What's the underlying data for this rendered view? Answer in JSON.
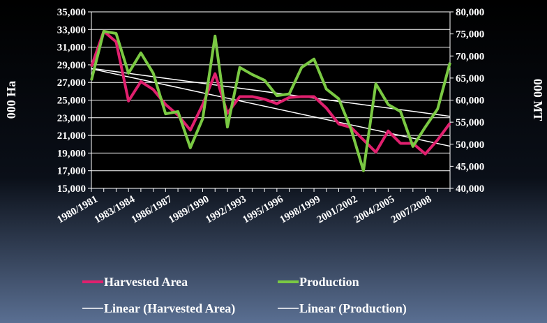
{
  "chart_data": {
    "type": "line",
    "categories": [
      "1980/1981",
      null,
      null,
      "1983/1984",
      null,
      null,
      "1986/1987",
      null,
      null,
      "1989/1990",
      null,
      null,
      "1992/1993",
      null,
      null,
      "1995/1996",
      null,
      null,
      "1998/1999",
      null,
      null,
      "2001/2002",
      null,
      null,
      "2004/2005",
      null,
      null,
      "2007/2008",
      null,
      null
    ],
    "y_label": "000 Ha",
    "y2_label": "000 MT",
    "ylim": [
      15000,
      35000
    ],
    "yticks": [
      {
        "value": 15000,
        "label": "15,000"
      },
      {
        "value": 17000,
        "label": "17,000"
      },
      {
        "value": 19000,
        "label": "19,000"
      },
      {
        "value": 21000,
        "label": "21,000"
      },
      {
        "value": 23000,
        "label": "23,000"
      },
      {
        "value": 25000,
        "label": "25,000"
      },
      {
        "value": 27000,
        "label": "27,000"
      },
      {
        "value": 29000,
        "label": "29,000"
      },
      {
        "value": 31000,
        "label": "31,000"
      },
      {
        "value": 33000,
        "label": "33,000"
      },
      {
        "value": 35000,
        "label": "35,000"
      }
    ],
    "y2lim": [
      40000,
      80000
    ],
    "y2ticks": [
      {
        "value": 40000,
        "label": "40,000"
      },
      {
        "value": 45000,
        "label": "45,000"
      },
      {
        "value": 50000,
        "label": "50,000"
      },
      {
        "value": 55000,
        "label": "55,000"
      },
      {
        "value": 60000,
        "label": "60,000"
      },
      {
        "value": 65000,
        "label": "65,000"
      },
      {
        "value": 70000,
        "label": "70,000"
      },
      {
        "value": 75000,
        "label": "75,000"
      },
      {
        "value": 80000,
        "label": "80,000"
      }
    ],
    "grid": true,
    "series": [
      {
        "name": "Harvested Area",
        "color": "#e0206e",
        "values": [
          28800,
          32800,
          31600,
          24900,
          27100,
          26200,
          24500,
          23300,
          21600,
          24500,
          28000,
          23500,
          25400,
          25400,
          25100,
          24600,
          25300,
          25400,
          25400,
          24100,
          22300,
          21900,
          20500,
          19100,
          21500,
          20100,
          20100,
          18900,
          20500,
          22400
        ]
      },
      {
        "name": "Production",
        "color": "#7ac943",
        "axis": "y2",
        "values": [
          64500,
          75600,
          75100,
          66100,
          70700,
          66100,
          56900,
          57400,
          49200,
          55800,
          74500,
          53900,
          67400,
          65800,
          64500,
          61000,
          61400,
          67400,
          69300,
          62500,
          60300,
          53400,
          44000,
          63700,
          59000,
          57400,
          49500,
          53900,
          58000,
          68500
        ]
      }
    ],
    "trendlines": [
      {
        "name": "Linear (Harvested Area)",
        "series": 0,
        "color": "#ffffff"
      },
      {
        "name": "Linear (Production)",
        "series": 1,
        "color": "#ffffff"
      }
    ]
  }
}
